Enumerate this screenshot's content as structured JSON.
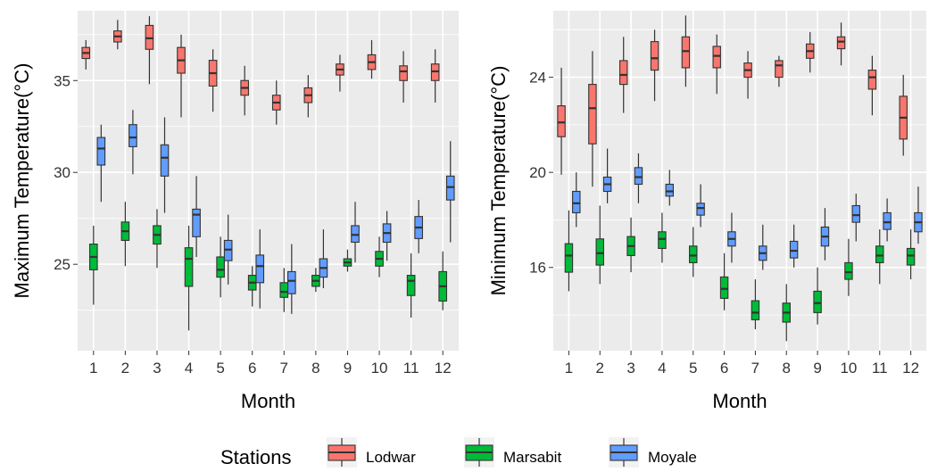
{
  "colors": {
    "panel_bg": "#EBEBEB",
    "grid_major": "#FFFFFF",
    "text": "#333333",
    "Lodwar": "#F8766D",
    "Marsabit": "#00BA38",
    "Moyale": "#619CFF"
  },
  "legend": {
    "title": "Stations",
    "position": "bottom",
    "items": [
      "Lodwar",
      "Marsabit",
      "Moyale"
    ]
  },
  "chart_data": [
    {
      "type": "box",
      "xlabel": "Month",
      "ylabel": "Maximum Temperature(°C)",
      "categories": [
        "1",
        "2",
        "3",
        "4",
        "5",
        "6",
        "7",
        "8",
        "9",
        "10",
        "11",
        "12"
      ],
      "ylim": [
        20.3,
        38.8
      ],
      "yticks": [
        25,
        30,
        35
      ],
      "grid": true,
      "series": [
        {
          "name": "Lodwar",
          "boxes": [
            {
              "min": 35.6,
              "q1": 36.2,
              "median": 36.5,
              "q3": 36.8,
              "max": 37.2
            },
            {
              "min": 36.7,
              "q1": 37.1,
              "median": 37.4,
              "q3": 37.7,
              "max": 38.3
            },
            {
              "min": 34.8,
              "q1": 36.7,
              "median": 37.3,
              "q3": 38.0,
              "max": 38.5
            },
            {
              "min": 33.0,
              "q1": 35.4,
              "median": 36.1,
              "q3": 36.8,
              "max": 37.5
            },
            {
              "min": 33.3,
              "q1": 34.7,
              "median": 35.4,
              "q3": 36.1,
              "max": 36.7
            },
            {
              "min": 33.1,
              "q1": 34.2,
              "median": 34.6,
              "q3": 35.0,
              "max": 35.8
            },
            {
              "min": 32.6,
              "q1": 33.4,
              "median": 33.8,
              "q3": 34.2,
              "max": 35.0
            },
            {
              "min": 33.0,
              "q1": 33.8,
              "median": 34.2,
              "q3": 34.6,
              "max": 35.3
            },
            {
              "min": 34.4,
              "q1": 35.3,
              "median": 35.6,
              "q3": 35.9,
              "max": 36.4
            },
            {
              "min": 35.1,
              "q1": 35.6,
              "median": 36.0,
              "q3": 36.4,
              "max": 37.2
            },
            {
              "min": 33.8,
              "q1": 35.0,
              "median": 35.5,
              "q3": 35.8,
              "max": 36.6
            },
            {
              "min": 33.8,
              "q1": 35.0,
              "median": 35.5,
              "q3": 35.9,
              "max": 36.7
            }
          ]
        },
        {
          "name": "Marsabit",
          "boxes": [
            {
              "min": 22.8,
              "q1": 24.7,
              "median": 25.4,
              "q3": 26.1,
              "max": 27.1
            },
            {
              "min": 24.9,
              "q1": 26.3,
              "median": 26.8,
              "q3": 27.3,
              "max": 28.4
            },
            {
              "min": 24.8,
              "q1": 26.1,
              "median": 26.6,
              "q3": 27.1,
              "max": 28.0
            },
            {
              "min": 21.4,
              "q1": 23.8,
              "median": 25.3,
              "q3": 25.9,
              "max": 27.1
            },
            {
              "min": 23.2,
              "q1": 24.3,
              "median": 24.7,
              "q3": 25.4,
              "max": 26.5
            },
            {
              "min": 22.7,
              "q1": 23.6,
              "median": 24.0,
              "q3": 24.4,
              "max": 24.9
            },
            {
              "min": 22.4,
              "q1": 23.2,
              "median": 23.5,
              "q3": 24.0,
              "max": 24.8
            },
            {
              "min": 23.5,
              "q1": 23.8,
              "median": 24.1,
              "q3": 24.4,
              "max": 24.8
            },
            {
              "min": 24.6,
              "q1": 24.9,
              "median": 25.1,
              "q3": 25.3,
              "max": 25.8
            },
            {
              "min": 24.3,
              "q1": 24.9,
              "median": 25.3,
              "q3": 25.7,
              "max": 26.5
            },
            {
              "min": 22.1,
              "q1": 23.3,
              "median": 24.1,
              "q3": 24.4,
              "max": 25.6
            },
            {
              "min": 22.5,
              "q1": 23.0,
              "median": 23.8,
              "q3": 24.6,
              "max": 25.7
            }
          ]
        },
        {
          "name": "Moyale",
          "boxes": [
            {
              "min": 28.4,
              "q1": 30.4,
              "median": 31.3,
              "q3": 31.9,
              "max": 32.6
            },
            {
              "min": 29.9,
              "q1": 31.4,
              "median": 31.9,
              "q3": 32.6,
              "max": 33.4
            },
            {
              "min": 27.8,
              "q1": 29.8,
              "median": 30.8,
              "q3": 31.5,
              "max": 33.0
            },
            {
              "min": 25.4,
              "q1": 26.5,
              "median": 27.7,
              "q3": 28.0,
              "max": 29.8
            },
            {
              "min": 23.9,
              "q1": 25.2,
              "median": 25.8,
              "q3": 26.3,
              "max": 27.7
            },
            {
              "min": 22.6,
              "q1": 24.0,
              "median": 24.9,
              "q3": 25.5,
              "max": 26.9
            },
            {
              "min": 22.3,
              "q1": 23.4,
              "median": 24.1,
              "q3": 24.6,
              "max": 26.1
            },
            {
              "min": 23.7,
              "q1": 24.3,
              "median": 24.8,
              "q3": 25.3,
              "max": 26.9
            },
            {
              "min": 25.1,
              "q1": 26.2,
              "median": 26.6,
              "q3": 27.1,
              "max": 28.4
            },
            {
              "min": 25.2,
              "q1": 26.2,
              "median": 26.7,
              "q3": 27.2,
              "max": 27.9
            },
            {
              "min": 25.6,
              "q1": 26.4,
              "median": 27.0,
              "q3": 27.6,
              "max": 28.5
            },
            {
              "min": 26.2,
              "q1": 28.5,
              "median": 29.2,
              "q3": 29.8,
              "max": 31.7
            }
          ]
        }
      ]
    },
    {
      "type": "box",
      "xlabel": "Month",
      "ylabel": "Minimum Temperature(°C)",
      "categories": [
        "1",
        "2",
        "3",
        "4",
        "5",
        "6",
        "7",
        "8",
        "9",
        "10",
        "11",
        "12"
      ],
      "ylim": [
        12.5,
        26.8
      ],
      "yticks": [
        16,
        20,
        24
      ],
      "grid": true,
      "series": [
        {
          "name": "Lodwar",
          "boxes": [
            {
              "min": 19.9,
              "q1": 21.5,
              "median": 22.1,
              "q3": 22.8,
              "max": 24.4
            },
            {
              "min": 19.4,
              "q1": 21.2,
              "median": 22.7,
              "q3": 23.7,
              "max": 25.1
            },
            {
              "min": 22.5,
              "q1": 23.7,
              "median": 24.1,
              "q3": 24.7,
              "max": 25.7
            },
            {
              "min": 23.0,
              "q1": 24.3,
              "median": 24.8,
              "q3": 25.5,
              "max": 26.0
            },
            {
              "min": 23.6,
              "q1": 24.4,
              "median": 25.1,
              "q3": 25.7,
              "max": 26.6
            },
            {
              "min": 23.3,
              "q1": 24.4,
              "median": 24.9,
              "q3": 25.3,
              "max": 25.8
            },
            {
              "min": 23.1,
              "q1": 24.0,
              "median": 24.3,
              "q3": 24.6,
              "max": 25.1
            },
            {
              "min": 23.6,
              "q1": 24.0,
              "median": 24.5,
              "q3": 24.7,
              "max": 24.9
            },
            {
              "min": 24.2,
              "q1": 24.8,
              "median": 25.1,
              "q3": 25.4,
              "max": 25.9
            },
            {
              "min": 24.5,
              "q1": 25.2,
              "median": 25.5,
              "q3": 25.7,
              "max": 26.3
            },
            {
              "min": 22.4,
              "q1": 23.5,
              "median": 24.0,
              "q3": 24.3,
              "max": 24.9
            },
            {
              "min": 20.7,
              "q1": 21.4,
              "median": 22.3,
              "q3": 23.2,
              "max": 24.1
            }
          ]
        },
        {
          "name": "Marsabit",
          "boxes": [
            {
              "min": 15.0,
              "q1": 15.8,
              "median": 16.5,
              "q3": 17.0,
              "max": 18.4
            },
            {
              "min": 15.3,
              "q1": 16.1,
              "median": 16.6,
              "q3": 17.2,
              "max": 18.6
            },
            {
              "min": 15.8,
              "q1": 16.5,
              "median": 16.9,
              "q3": 17.3,
              "max": 18.1
            },
            {
              "min": 16.2,
              "q1": 16.8,
              "median": 17.2,
              "q3": 17.5,
              "max": 18.3
            },
            {
              "min": 15.6,
              "q1": 16.2,
              "median": 16.5,
              "q3": 16.9,
              "max": 17.7
            },
            {
              "min": 14.2,
              "q1": 14.7,
              "median": 15.1,
              "q3": 15.6,
              "max": 16.6
            },
            {
              "min": 13.4,
              "q1": 13.8,
              "median": 14.1,
              "q3": 14.6,
              "max": 15.5
            },
            {
              "min": 12.9,
              "q1": 13.7,
              "median": 14.1,
              "q3": 14.5,
              "max": 15.3
            },
            {
              "min": 13.6,
              "q1": 14.1,
              "median": 14.5,
              "q3": 15.0,
              "max": 16.0
            },
            {
              "min": 14.8,
              "q1": 15.5,
              "median": 15.8,
              "q3": 16.2,
              "max": 17.2
            },
            {
              "min": 15.3,
              "q1": 16.2,
              "median": 16.5,
              "q3": 16.9,
              "max": 17.6
            },
            {
              "min": 15.5,
              "q1": 16.1,
              "median": 16.5,
              "q3": 16.8,
              "max": 17.6
            }
          ]
        },
        {
          "name": "Moyale",
          "boxes": [
            {
              "min": 17.7,
              "q1": 18.3,
              "median": 18.7,
              "q3": 19.2,
              "max": 20.0
            },
            {
              "min": 18.7,
              "q1": 19.2,
              "median": 19.5,
              "q3": 19.8,
              "max": 21.0
            },
            {
              "min": 18.7,
              "q1": 19.5,
              "median": 19.8,
              "q3": 20.2,
              "max": 20.8
            },
            {
              "min": 18.6,
              "q1": 19.0,
              "median": 19.2,
              "q3": 19.5,
              "max": 20.1
            },
            {
              "min": 17.7,
              "q1": 18.2,
              "median": 18.5,
              "q3": 18.7,
              "max": 19.5
            },
            {
              "min": 16.2,
              "q1": 16.9,
              "median": 17.2,
              "q3": 17.5,
              "max": 18.3
            },
            {
              "min": 15.9,
              "q1": 16.3,
              "median": 16.6,
              "q3": 16.9,
              "max": 17.8
            },
            {
              "min": 16.0,
              "q1": 16.4,
              "median": 16.7,
              "q3": 17.1,
              "max": 17.8
            },
            {
              "min": 16.3,
              "q1": 16.9,
              "median": 17.3,
              "q3": 17.7,
              "max": 18.5
            },
            {
              "min": 17.1,
              "q1": 17.9,
              "median": 18.2,
              "q3": 18.6,
              "max": 19.1
            },
            {
              "min": 17.1,
              "q1": 17.6,
              "median": 17.9,
              "q3": 18.3,
              "max": 18.9
            },
            {
              "min": 17.0,
              "q1": 17.5,
              "median": 17.9,
              "q3": 18.3,
              "max": 19.4
            }
          ]
        }
      ]
    }
  ]
}
